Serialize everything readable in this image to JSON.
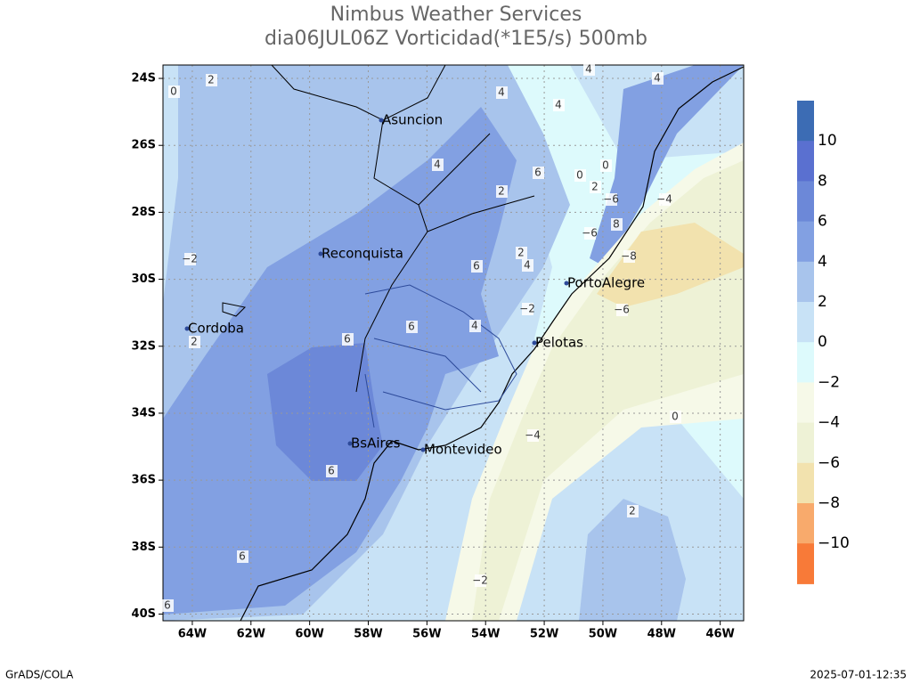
{
  "map": {
    "title": "Nimbus Weather Services",
    "subtitle": "dia06JUL06Z Vorticidad(*1E5/s) 500mb",
    "lon_range": [
      -65,
      -45.2
    ],
    "lat_range": [
      -23.6,
      -40.2
    ],
    "lon_ticks": [
      {
        "value": -64,
        "label": "64W"
      },
      {
        "value": -62,
        "label": "62W"
      },
      {
        "value": -60,
        "label": "60W"
      },
      {
        "value": -58,
        "label": "58W"
      },
      {
        "value": -56,
        "label": "56W"
      },
      {
        "value": -54,
        "label": "54W"
      },
      {
        "value": -52,
        "label": "52W"
      },
      {
        "value": -50,
        "label": "50W"
      },
      {
        "value": -48,
        "label": "48W"
      },
      {
        "value": -46,
        "label": "46W"
      }
    ],
    "lat_ticks": [
      {
        "value": -24,
        "label": "24S"
      },
      {
        "value": -26,
        "label": "26S"
      },
      {
        "value": -28,
        "label": "28S"
      },
      {
        "value": -30,
        "label": "30S"
      },
      {
        "value": -32,
        "label": "32S"
      },
      {
        "value": -34,
        "label": "34S"
      },
      {
        "value": -36,
        "label": "36S"
      },
      {
        "value": -38,
        "label": "38S"
      },
      {
        "value": -40,
        "label": "40S"
      }
    ],
    "grid": true,
    "cities": [
      "Asuncion",
      "Reconquista",
      "Cordoba",
      "PortoAlegre",
      "Pelotas",
      "BsAires",
      "Montevideo"
    ],
    "contour_labels": [
      0,
      2,
      2,
      4,
      4,
      4,
      2,
      4,
      4,
      4,
      6,
      6,
      6,
      6,
      6,
      6,
      6,
      4,
      2,
      2,
      {
        "value": -2,
        "label": "−2"
      },
      {
        "value": -2,
        "label": "−2"
      },
      {
        "value": -4,
        "label": "−4"
      },
      {
        "value": -6,
        "label": "−6"
      },
      {
        "value": -6,
        "label": "−6"
      },
      {
        "value": -8,
        "label": "−8"
      },
      {
        "value": -4,
        "label": "−4"
      },
      0,
      0,
      {
        "value": -2,
        "label": "−2"
      },
      2,
      0,
      {
        "value": -6,
        "label": "−6"
      },
      8
    ],
    "colorbar": {
      "colors": [
        "#3c6cb4",
        "#5a70d0",
        "#6c88d8",
        "#82a0e2",
        "#a8c4ec",
        "#c8e2f6",
        "#ddfafc",
        "#f6f9e8",
        "#eef2d6",
        "#f2e2ae",
        "#f8aa6c",
        "#f87a38"
      ],
      "ticks": [
        10,
        8,
        6,
        4,
        2,
        0,
        {
          "value": -2,
          "label": "−2"
        },
        {
          "value": -4,
          "label": "−4"
        },
        {
          "value": -6,
          "label": "−6"
        },
        {
          "value": -8,
          "label": "−8"
        },
        {
          "value": -10,
          "label": "−10"
        }
      ]
    },
    "footer_left": "GrADS/COLA",
    "footer_right": "2025-07-01-12:35"
  }
}
